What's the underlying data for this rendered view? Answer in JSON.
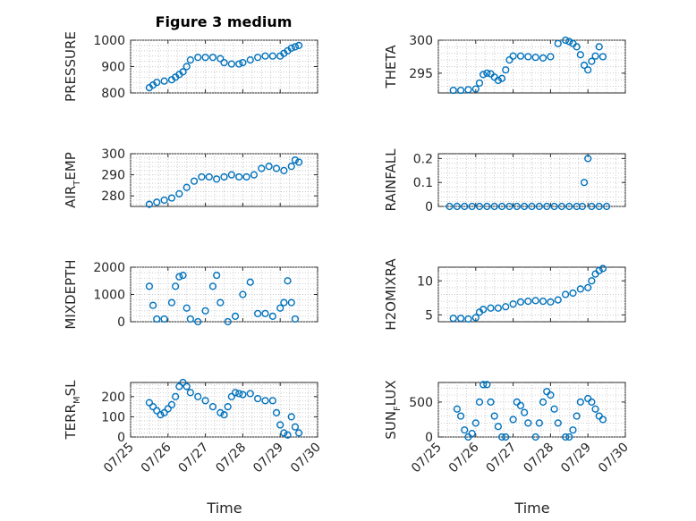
{
  "chart_data": {
    "type": "scatter",
    "title": "Figure 3 medium",
    "marker_color": "#0072BD",
    "xaxis": {
      "label": "Time",
      "range": [
        0,
        5
      ],
      "ticks": [
        0,
        1,
        2,
        3,
        4,
        5
      ],
      "tick_labels": [
        "07/25",
        "07/26",
        "07/27",
        "07/28",
        "07/29",
        "07/30"
      ]
    },
    "panels": [
      {
        "ylabel": {
          "main": "PRESSURE"
        },
        "ylim": [
          800,
          1000
        ],
        "yticks": [
          800,
          900,
          1000
        ],
        "ytick_labels": [
          "800",
          "900",
          "1000"
        ],
        "x": [
          0.5,
          0.6,
          0.7,
          0.9,
          1.1,
          1.2,
          1.3,
          1.4,
          1.5,
          1.6,
          1.8,
          2.0,
          2.2,
          2.4,
          2.5,
          2.7,
          2.9,
          3.0,
          3.2,
          3.4,
          3.6,
          3.8,
          4.0,
          4.1,
          4.2,
          4.3,
          4.4,
          4.5
        ],
        "y": [
          820,
          830,
          840,
          845,
          850,
          860,
          870,
          880,
          900,
          925,
          935,
          935,
          935,
          930,
          915,
          910,
          910,
          915,
          925,
          935,
          940,
          940,
          940,
          950,
          960,
          970,
          975,
          980
        ]
      },
      {
        "ylabel": {
          "main": "THETA"
        },
        "ylim": [
          292,
          300
        ],
        "yticks": [
          295,
          300
        ],
        "ytick_labels": [
          "295",
          "300"
        ],
        "x": [
          0.4,
          0.6,
          0.8,
          1.0,
          1.1,
          1.2,
          1.3,
          1.4,
          1.5,
          1.6,
          1.7,
          1.8,
          1.9,
          2.0,
          2.2,
          2.4,
          2.6,
          2.8,
          3.0,
          3.2,
          3.4,
          3.5,
          3.6,
          3.7,
          3.8,
          3.9,
          4.0,
          4.1,
          4.2,
          4.3,
          4.4
        ],
        "y": [
          292.4,
          292.4,
          292.5,
          292.6,
          293.5,
          294.8,
          295.0,
          294.9,
          294.4,
          293.9,
          294.2,
          295.5,
          297.0,
          297.6,
          297.6,
          297.5,
          297.4,
          297.3,
          297.5,
          299.5,
          300.0,
          299.8,
          299.5,
          299.0,
          297.8,
          296.2,
          295.5,
          296.8,
          297.6,
          299.0,
          297.5
        ]
      },
      {
        "ylabel": {
          "main": "AIR",
          "sub": "T",
          "rest": "EMP"
        },
        "ylim": [
          275,
          300
        ],
        "yticks": [
          280,
          290,
          300
        ],
        "ytick_labels": [
          "280",
          "290",
          "300"
        ],
        "x": [
          0.5,
          0.7,
          0.9,
          1.1,
          1.3,
          1.5,
          1.7,
          1.9,
          2.1,
          2.3,
          2.5,
          2.7,
          2.9,
          3.1,
          3.3,
          3.5,
          3.7,
          3.9,
          4.1,
          4.3,
          4.4,
          4.5
        ],
        "y": [
          276,
          277,
          278,
          279,
          281,
          284,
          287,
          289,
          289,
          288,
          289,
          290,
          289,
          289,
          290,
          293,
          294,
          293,
          292,
          294,
          297,
          296
        ]
      },
      {
        "ylabel": {
          "main": "RAINFALL"
        },
        "ylim": [
          0,
          0.22
        ],
        "yticks": [
          0,
          0.1,
          0.2
        ],
        "ytick_labels": [
          "0",
          "0.1",
          "0.2"
        ],
        "x": [
          0.3,
          0.5,
          0.7,
          0.9,
          1.1,
          1.3,
          1.5,
          1.7,
          1.9,
          2.1,
          2.3,
          2.5,
          2.7,
          2.9,
          3.1,
          3.3,
          3.5,
          3.7,
          3.85,
          3.9,
          4.0,
          4.1,
          4.3,
          4.5
        ],
        "y": [
          0,
          0,
          0,
          0,
          0,
          0,
          0,
          0,
          0,
          0,
          0,
          0,
          0,
          0,
          0,
          0,
          0,
          0,
          0,
          0.1,
          0.2,
          0,
          0,
          0
        ]
      },
      {
        "ylabel": {
          "main": "MIXDEPTH"
        },
        "ylim": [
          0,
          2000
        ],
        "yticks": [
          0,
          1000,
          2000
        ],
        "ytick_labels": [
          "0",
          "1000",
          "2000"
        ],
        "x": [
          0.5,
          0.6,
          0.7,
          0.9,
          1.1,
          1.2,
          1.3,
          1.4,
          1.5,
          1.6,
          1.8,
          2.0,
          2.2,
          2.3,
          2.4,
          2.6,
          2.8,
          3.0,
          3.2,
          3.4,
          3.6,
          3.8,
          4.0,
          4.1,
          4.2,
          4.3,
          4.4
        ],
        "y": [
          1300,
          600,
          100,
          100,
          700,
          1300,
          1650,
          1700,
          500,
          100,
          0,
          400,
          1300,
          1700,
          700,
          0,
          200,
          1000,
          1450,
          300,
          300,
          200,
          500,
          700,
          1500,
          700,
          100
        ]
      },
      {
        "ylabel": {
          "main": "H2OMIXRA"
        },
        "ylim": [
          4,
          12
        ],
        "yticks": [
          5,
          10
        ],
        "ytick_labels": [
          "5",
          "10"
        ],
        "x": [
          0.4,
          0.6,
          0.8,
          1.0,
          1.1,
          1.2,
          1.4,
          1.6,
          1.8,
          2.0,
          2.2,
          2.4,
          2.6,
          2.8,
          3.0,
          3.2,
          3.4,
          3.6,
          3.8,
          4.0,
          4.1,
          4.2,
          4.3,
          4.4
        ],
        "y": [
          4.5,
          4.5,
          4.4,
          4.6,
          5.4,
          5.8,
          6.0,
          6.0,
          6.2,
          6.6,
          6.9,
          7.0,
          7.1,
          7.0,
          6.9,
          7.2,
          8.0,
          8.2,
          8.8,
          9.0,
          10.0,
          11.0,
          11.5,
          11.8
        ]
      },
      {
        "ylabel": {
          "main": "TERR",
          "sub": "M",
          "rest": "SL"
        },
        "ylim": [
          0,
          270
        ],
        "yticks": [
          0,
          100,
          200
        ],
        "ytick_labels": [
          "0",
          "100",
          "200"
        ],
        "x": [
          0.5,
          0.6,
          0.7,
          0.8,
          0.9,
          1.0,
          1.1,
          1.2,
          1.3,
          1.4,
          1.5,
          1.6,
          1.8,
          2.0,
          2.2,
          2.4,
          2.5,
          2.6,
          2.7,
          2.8,
          2.9,
          3.0,
          3.2,
          3.4,
          3.6,
          3.8,
          3.9,
          4.0,
          4.1,
          4.2,
          4.3,
          4.4,
          4.5
        ],
        "y": [
          170,
          150,
          130,
          110,
          120,
          140,
          160,
          200,
          250,
          270,
          250,
          220,
          200,
          180,
          150,
          120,
          110,
          150,
          200,
          220,
          215,
          210,
          215,
          190,
          180,
          180,
          120,
          60,
          20,
          10,
          100,
          50,
          20
        ]
      },
      {
        "ylabel": {
          "main": "SUN",
          "sub": "F",
          "rest": "LUX"
        },
        "ylim": [
          0,
          780
        ],
        "yticks": [
          0,
          500
        ],
        "ytick_labels": [
          "0",
          "500"
        ],
        "x": [
          0.5,
          0.6,
          0.7,
          0.8,
          0.9,
          1.0,
          1.1,
          1.2,
          1.3,
          1.4,
          1.5,
          1.6,
          1.7,
          1.8,
          2.0,
          2.1,
          2.2,
          2.3,
          2.4,
          2.6,
          2.7,
          2.8,
          2.9,
          3.0,
          3.1,
          3.2,
          3.4,
          3.5,
          3.6,
          3.7,
          3.8,
          4.0,
          4.1,
          4.2,
          4.3,
          4.4
        ],
        "y": [
          400,
          300,
          100,
          0,
          50,
          200,
          500,
          750,
          750,
          500,
          300,
          150,
          0,
          0,
          250,
          500,
          450,
          350,
          200,
          0,
          200,
          500,
          650,
          600,
          400,
          200,
          0,
          0,
          100,
          300,
          500,
          550,
          500,
          400,
          300,
          250
        ]
      }
    ]
  }
}
